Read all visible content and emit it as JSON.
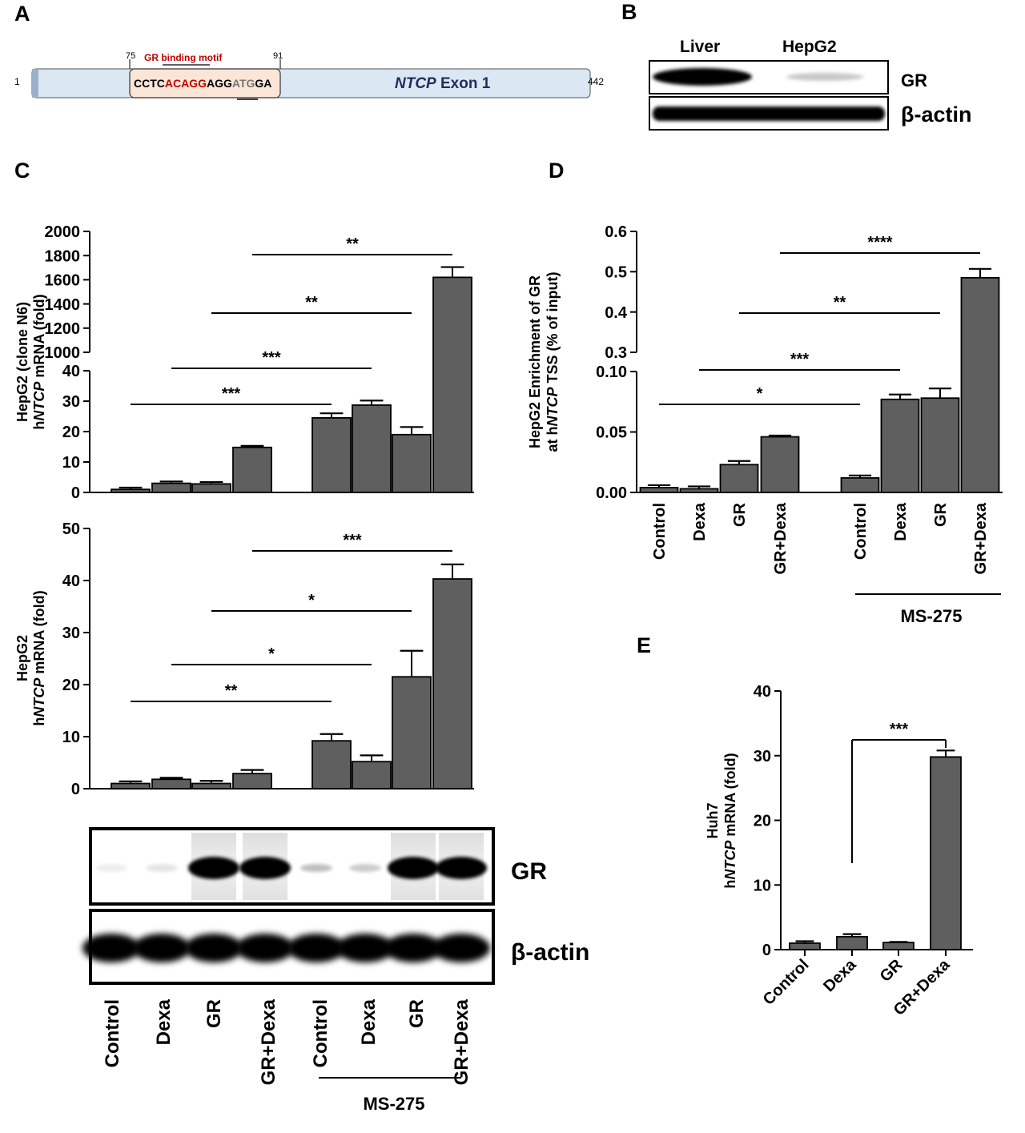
{
  "colors": {
    "bar": "#5f5f5f",
    "motif_red": "#c00000",
    "ntcp_blue": "#1f2d5c",
    "exon_fill": "#dbe7f3",
    "motif_fill": "#fbe5d6"
  },
  "panelA": {
    "letter": "A",
    "pos_start": "1",
    "pos_end": "442",
    "motif_start": "75",
    "motif_end": "91",
    "motif_title": "GR binding motif",
    "seq_a": "CCTC",
    "seq_b": "ACAGG",
    "seq_c": "AGG",
    "seq_d": "ATG",
    "seq_e": "GA",
    "exon_gene": "NTCP",
    "exon_suffix": " Exon 1"
  },
  "panelB": {
    "letter": "B",
    "lane1": "Liver",
    "lane2": "HepG2",
    "row1": "GR",
    "row2": "β-actin"
  },
  "panelBlot": {
    "row1": "GR",
    "row2": "β-actin"
  },
  "shared": {
    "groups": [
      "Control",
      "Dexa",
      "GR",
      "GR+Dexa"
    ],
    "ms_label": "MS-275"
  },
  "chart_data": [
    {
      "id": "C-top",
      "panel": "C",
      "type": "bar",
      "title": "",
      "ylabel_line1": "HepG2 (clone N6)",
      "ylabel_pre": "h",
      "ylabel_gene": "NTCP",
      "ylabel_post": " mRNA (fold)",
      "categories": [
        "Control",
        "Dexa",
        "GR",
        "GR+Dexa",
        "Control",
        "Dexa",
        "GR",
        "GR+Dexa"
      ],
      "category_group": [
        "",
        "",
        "",
        "",
        "MS-275",
        "MS-275",
        "MS-275",
        "MS-275"
      ],
      "values": [
        1,
        3,
        2.8,
        14.8,
        24.5,
        28.7,
        19,
        1620
      ],
      "errors": [
        0.6,
        0.6,
        0.6,
        0.5,
        1.5,
        1.5,
        2.5,
        85
      ],
      "ylim_lower": [
        0,
        40
      ],
      "ylim_upper": [
        1000,
        2000
      ],
      "yticks_lower": [
        "0",
        "10",
        "20",
        "30",
        "40"
      ],
      "yticks_upper": [
        "1000",
        "1200",
        "1400",
        "1600",
        "1800",
        "2000"
      ],
      "annotations": [
        {
          "from": 0,
          "to": 4,
          "label": "***"
        },
        {
          "from": 1,
          "to": 5,
          "label": "***"
        },
        {
          "from": 2,
          "to": 6,
          "label": "**"
        },
        {
          "from": 3,
          "to": 7,
          "label": "**"
        }
      ]
    },
    {
      "id": "C-bottom",
      "panel": "C",
      "type": "bar",
      "title": "",
      "ylabel_line1": "HepG2",
      "ylabel_pre": "h",
      "ylabel_gene": "NTCP",
      "ylabel_post": " mRNA (fold)",
      "categories": [
        "Control",
        "Dexa",
        "GR",
        "GR+Dexa",
        "Control",
        "Dexa",
        "GR",
        "GR+Dexa"
      ],
      "category_group": [
        "",
        "",
        "",
        "",
        "MS-275",
        "MS-275",
        "MS-275",
        "MS-275"
      ],
      "values": [
        1,
        1.8,
        1,
        2.9,
        9.2,
        5.2,
        21.5,
        40.3
      ],
      "errors": [
        0.4,
        0.3,
        0.5,
        0.7,
        1.3,
        1.2,
        5,
        2.8
      ],
      "ylim": [
        0,
        50
      ],
      "yticks": [
        "0",
        "10",
        "20",
        "30",
        "40",
        "50"
      ],
      "annotations": [
        {
          "from": 0,
          "to": 4,
          "label": "**"
        },
        {
          "from": 1,
          "to": 5,
          "label": "*"
        },
        {
          "from": 2,
          "to": 6,
          "label": "*"
        },
        {
          "from": 3,
          "to": 7,
          "label": "***"
        }
      ]
    },
    {
      "id": "D",
      "panel": "D",
      "type": "bar",
      "title": "",
      "ylabel_line1": "HepG2 Enrichment of GR",
      "ylabel_pre": "at h",
      "ylabel_gene": "NTCP",
      "ylabel_post": " TSS (% of input)",
      "categories": [
        "Control",
        "Dexa",
        "GR",
        "GR+Dexa",
        "Control",
        "Dexa",
        "GR",
        "GR+Dexa"
      ],
      "category_group": [
        "",
        "",
        "",
        "",
        "MS-275",
        "MS-275",
        "MS-275",
        "MS-275"
      ],
      "values": [
        0.004,
        0.003,
        0.023,
        0.046,
        0.012,
        0.077,
        0.078,
        0.485
      ],
      "errors": [
        0.002,
        0.002,
        0.003,
        0.001,
        0.002,
        0.004,
        0.008,
        0.022
      ],
      "ylim_lower": [
        0,
        0.1
      ],
      "ylim_upper": [
        0.3,
        0.6
      ],
      "yticks_lower": [
        "0.00",
        "0.05",
        "0.10"
      ],
      "yticks_upper": [
        "0.3",
        "0.4",
        "0.5",
        "0.6"
      ],
      "annotations": [
        {
          "from": 0,
          "to": 4,
          "label": "*"
        },
        {
          "from": 1,
          "to": 5,
          "label": "***"
        },
        {
          "from": 2,
          "to": 6,
          "label": "**"
        },
        {
          "from": 3,
          "to": 7,
          "label": "****"
        }
      ]
    },
    {
      "id": "E",
      "panel": "E",
      "type": "bar",
      "title": "",
      "ylabel_line1": "Huh7",
      "ylabel_pre": "h",
      "ylabel_gene": "NTCP",
      "ylabel_post": " mRNA (fold)",
      "categories": [
        "Control",
        "Dexa",
        "GR",
        "GR+Dexa"
      ],
      "values": [
        1,
        2,
        1.1,
        29.8
      ],
      "errors": [
        0.3,
        0.4,
        0.1,
        1
      ],
      "ylim": [
        0,
        40
      ],
      "yticks": [
        "0",
        "10",
        "20",
        "30",
        "40"
      ],
      "annotations": [
        {
          "from": 1,
          "to": 3,
          "label": "***"
        }
      ]
    }
  ],
  "letters": {
    "C": "C",
    "D": "D",
    "E": "E"
  }
}
